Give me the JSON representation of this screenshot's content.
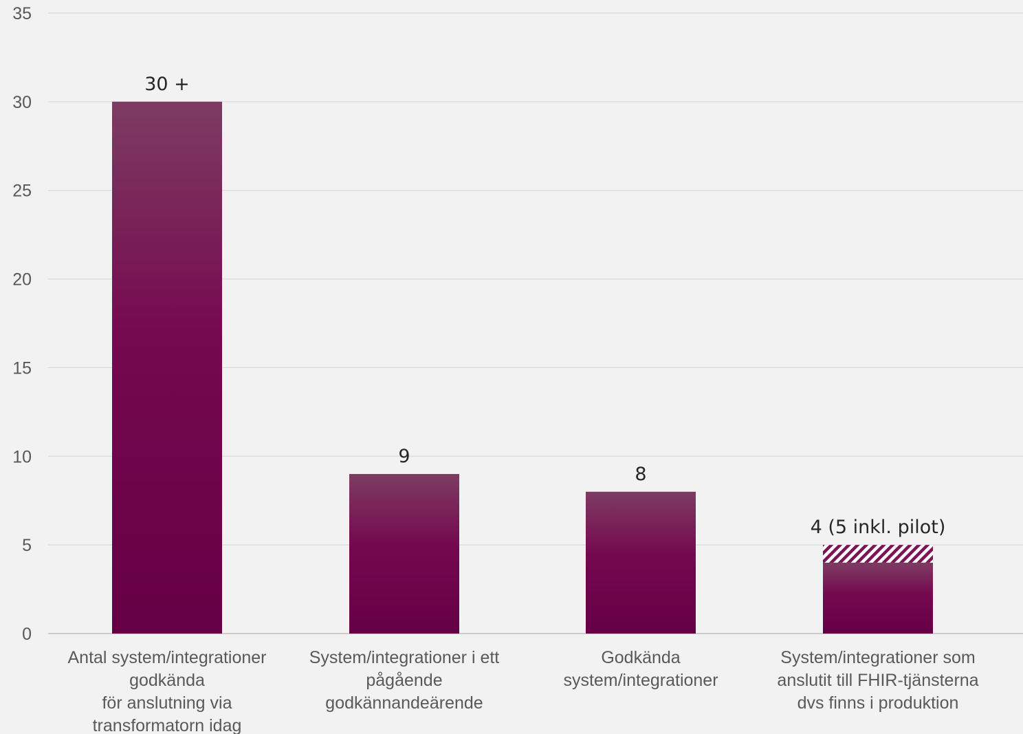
{
  "chart_data": {
    "type": "bar",
    "categories": [
      [
        "Antal system/integrationer",
        "godkända",
        "för anslutning via",
        "transformatorn idag"
      ],
      [
        "System/integrationer i ett",
        "pågående",
        "godkännandeärende"
      ],
      [
        "Godkända",
        "system/integrationer"
      ],
      [
        "System/integrationer som",
        "anslutit till FHIR-tjänsterna",
        "dvs finns i produktion"
      ]
    ],
    "values": [
      30,
      9,
      8,
      4
    ],
    "extra_hatched": [
      0,
      0,
      0,
      1
    ],
    "data_labels": [
      "30 +",
      "9",
      "8",
      "4 (5 inkl. pilot)"
    ],
    "ylim": [
      0,
      35
    ],
    "yticks": [
      0,
      5,
      10,
      15,
      20,
      25,
      30,
      35
    ],
    "grid": true,
    "legend": "none",
    "colors": {
      "bar_top": "#7d3c62",
      "bar_bottom": "#650045",
      "bar_mid": "#75084f",
      "hatch": "#7a1457",
      "grid": "#d9d9d9",
      "axis": "#bfbfbf",
      "background": "#f2f2f2"
    }
  }
}
